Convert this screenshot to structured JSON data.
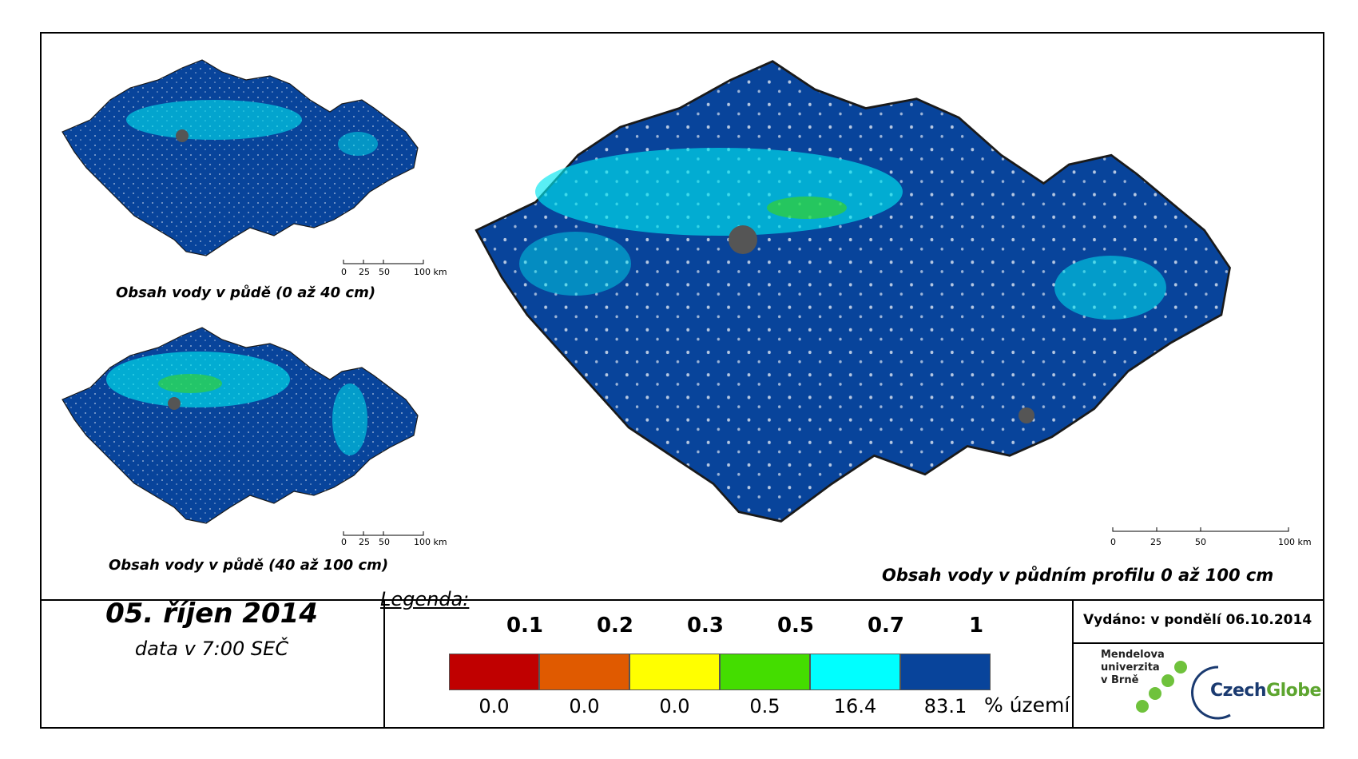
{
  "maps": {
    "main_title": "Obsah vody v půdním profilu 0 až 100 cm",
    "small_top_title": "Obsah vody v půdě (0 až 40 cm)",
    "small_bottom_title": "Obsah vody v půdě (40 až 100 cm)",
    "scale_labels": [
      "0",
      "25",
      "50",
      "100 km"
    ]
  },
  "date": {
    "title": "05. říjen 2014",
    "subtitle": "data v 7:00 SEČ"
  },
  "legend": {
    "title": "Legenda:",
    "unit": "% území",
    "classes": [
      {
        "threshold": "0.1",
        "percent": "0.0",
        "color": "#c00000"
      },
      {
        "threshold": "0.2",
        "percent": "0.0",
        "color": "#e05a00"
      },
      {
        "threshold": "0.3",
        "percent": "0.0",
        "color": "#ffff00"
      },
      {
        "threshold": "0.5",
        "percent": "0.5",
        "color": "#44dd00"
      },
      {
        "threshold": "0.7",
        "percent": "16.4",
        "color": "#00ffff"
      },
      {
        "threshold": "1",
        "percent": "83.1",
        "color": "#08449b"
      }
    ]
  },
  "issued": "Vydáno: v pondělí 06.10.2014",
  "logos": {
    "mendel_lines": [
      "Mendelova",
      "univerzita",
      "v Brně"
    ],
    "czechglobe_a": "Czech",
    "czechglobe_b": "Globe"
  },
  "colors": {
    "map_fill": "#08449b",
    "wet_patch": "#00e5f0",
    "urban": "#555555"
  }
}
